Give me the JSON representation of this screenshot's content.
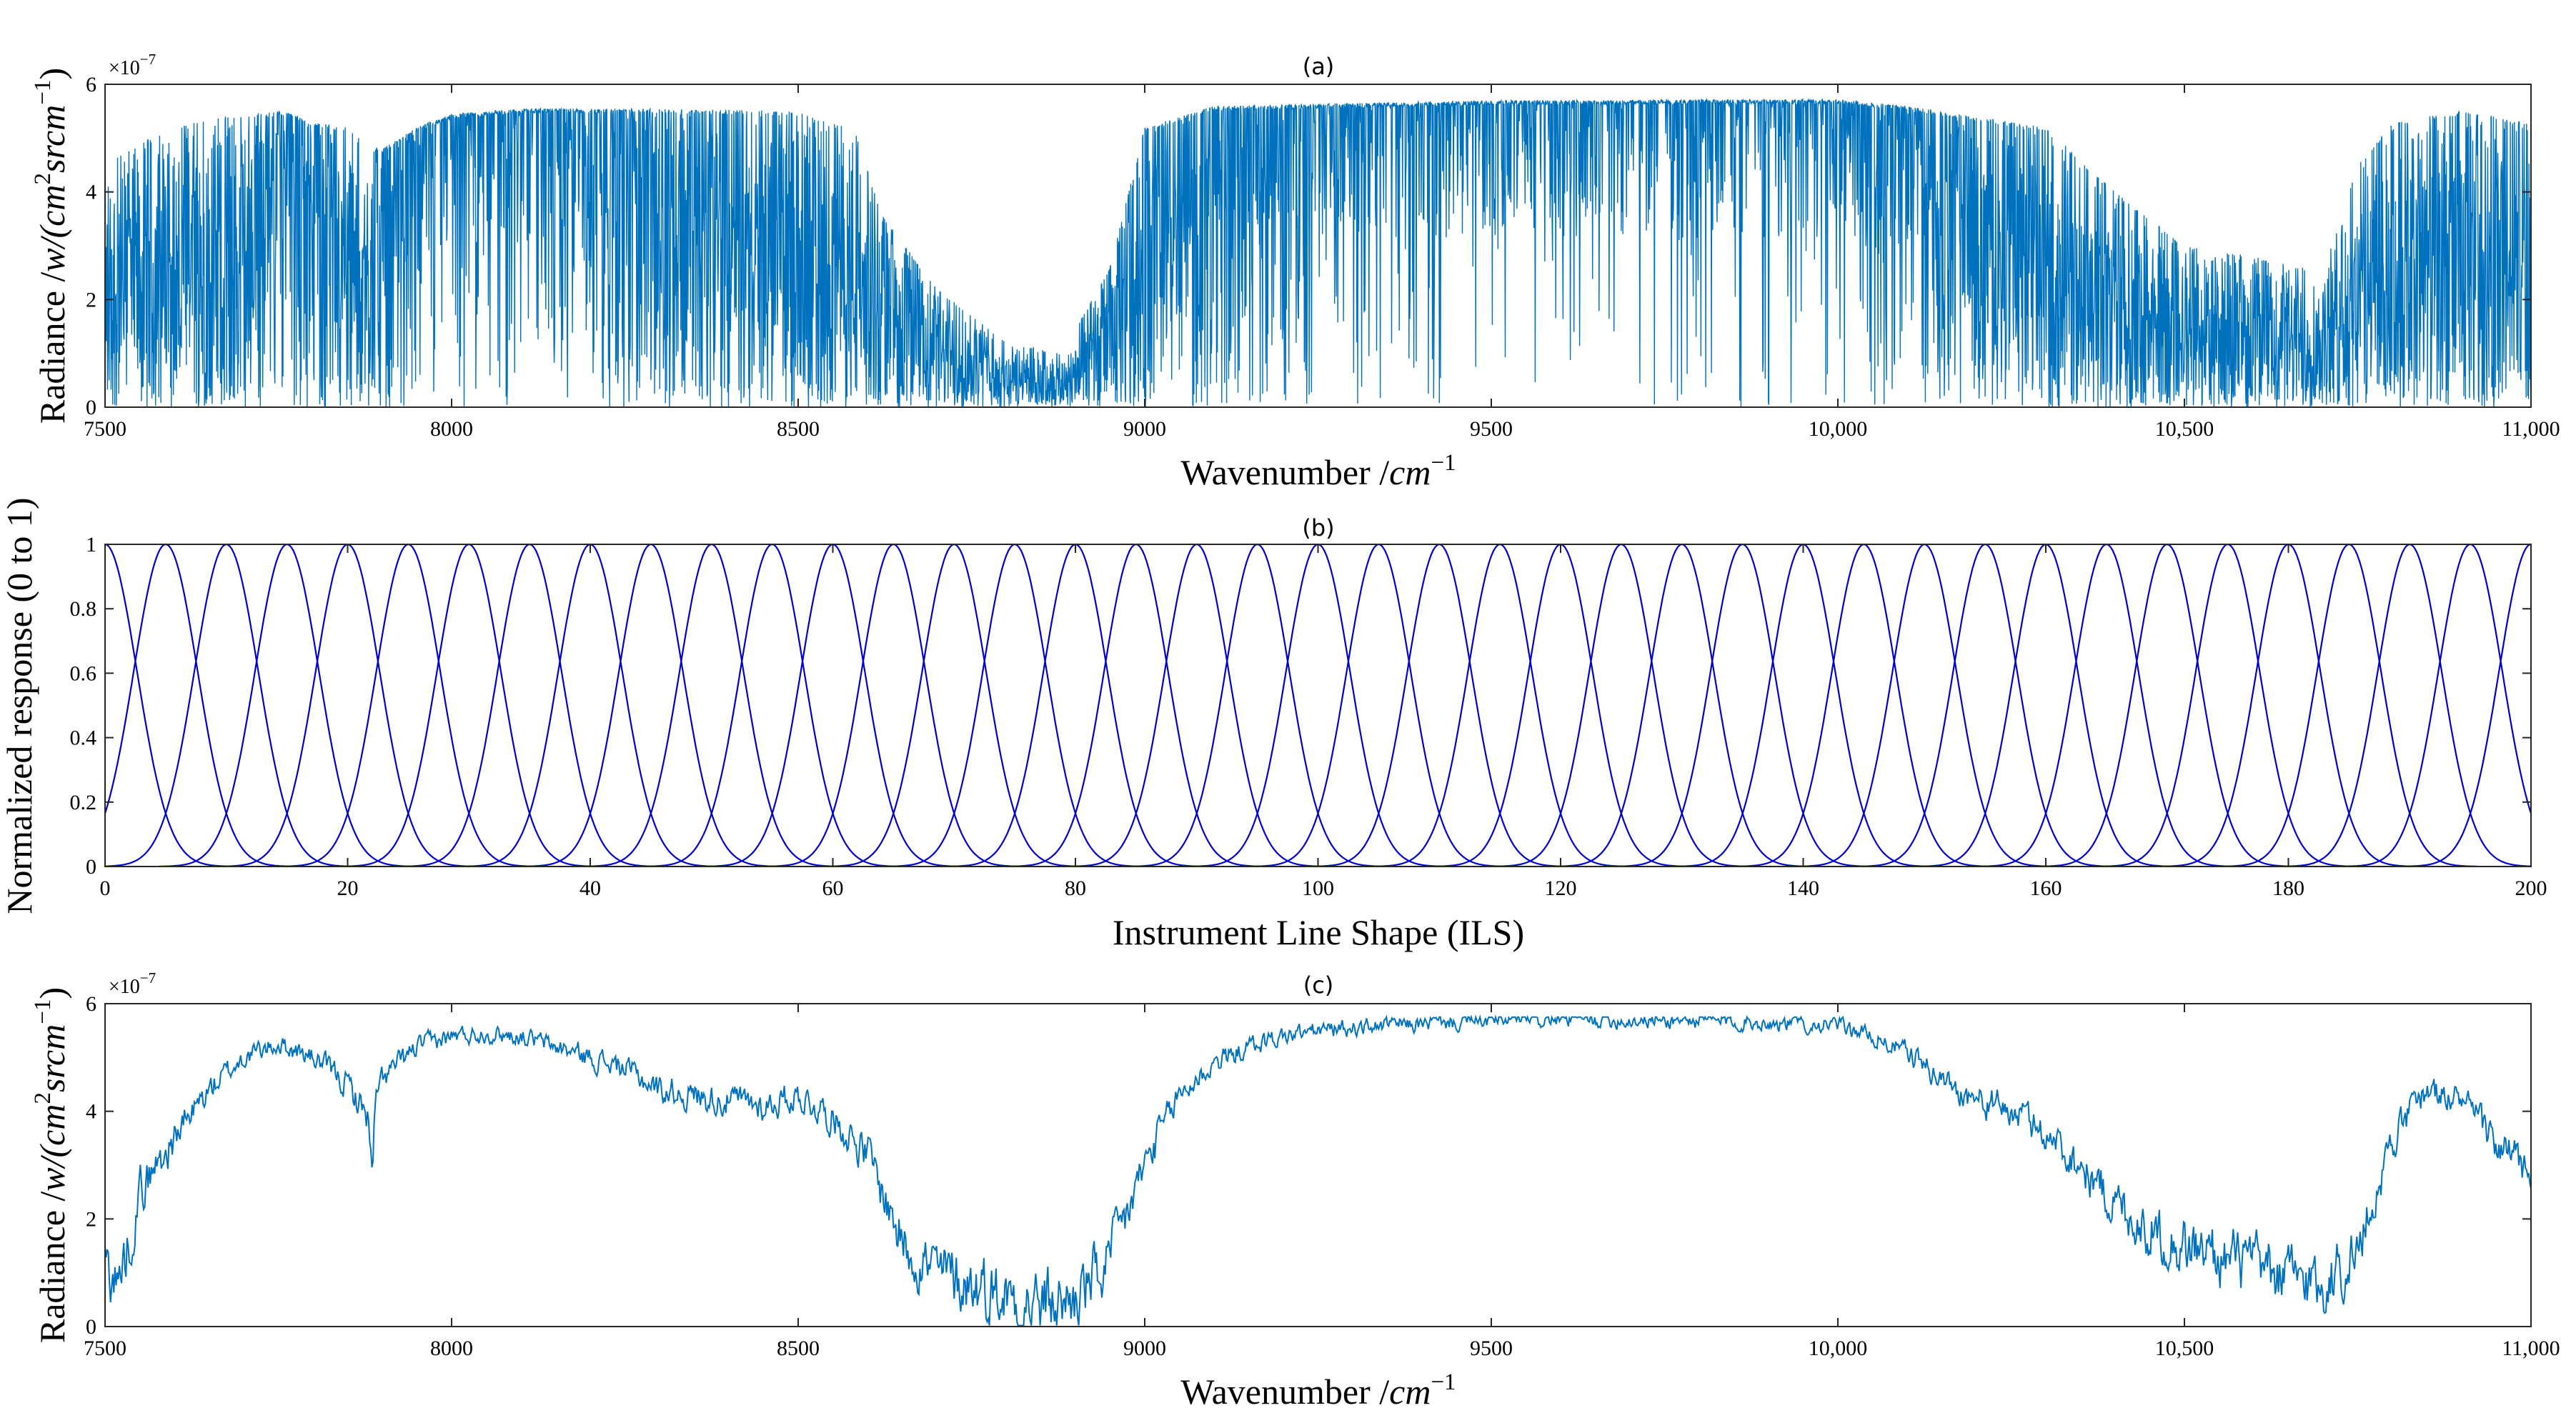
{
  "chart_data": [
    {
      "type": "line",
      "title": "(a)",
      "xlabel_text": "Wavenumber /",
      "xlabel_unit": "cm",
      "xlabel_sup": "−1",
      "ylabel_text": "Radiance /",
      "ylabel_unit": "w/(cm",
      "ylabel_sup1": "2",
      "ylabel_unit2": "srcm",
      "ylabel_sup2": "−1",
      "ylabel_close": ")",
      "exponent_base": "×10",
      "exponent_power": "−7",
      "xlim": [
        7500,
        11000
      ],
      "ylim": [
        0,
        6
      ],
      "xticks": [
        7500,
        8000,
        8500,
        9000,
        9500,
        10000,
        10500,
        11000
      ],
      "xtick_labels": [
        "7500",
        "8000",
        "8500",
        "9000",
        "9500",
        "10,000",
        "10,500",
        "11,000"
      ],
      "yticks": [
        0,
        2,
        4,
        6
      ],
      "ytick_labels": [
        "0",
        "2",
        "4",
        "6"
      ],
      "color": "#0072BD",
      "envelope": {
        "x": [
          7500,
          7560,
          7620,
          7700,
          7760,
          7800,
          7850,
          7880,
          7900,
          7950,
          8000,
          8100,
          8300,
          8500,
          8580,
          8620,
          8700,
          8800,
          8880,
          8950,
          9000,
          9100,
          9300,
          9500,
          9800,
          10000,
          10100,
          10200,
          10300,
          10400,
          10500,
          10600,
          10700,
          10750,
          10800,
          10900,
          11000
        ],
        "upper": [
          4.5,
          5.0,
          5.3,
          5.45,
          5.5,
          5.3,
          5.2,
          4.9,
          4.8,
          5.2,
          5.45,
          5.55,
          5.55,
          5.5,
          5.2,
          3.6,
          2.2,
          1.2,
          1.0,
          2.6,
          5.2,
          5.6,
          5.65,
          5.7,
          5.72,
          5.72,
          5.6,
          5.4,
          5.2,
          4.0,
          3.0,
          2.8,
          2.5,
          4.5,
          5.3,
          5.5,
          5.3
        ],
        "density": [
          0.95,
          0.95,
          0.9,
          0.9,
          0.5,
          0.6,
          0.9,
          0.95,
          0.6,
          0.4,
          0.35,
          0.15,
          0.6,
          0.85,
          0.95,
          0.9,
          0.9,
          0.95,
          0.95,
          0.85,
          0.7,
          0.45,
          0.2,
          0.08,
          0.08,
          0.12,
          0.35,
          0.7,
          0.85,
          0.9,
          0.9,
          0.95,
          0.95,
          0.9,
          0.85,
          0.85,
          0.85
        ]
      }
    },
    {
      "type": "line",
      "title": "(b)",
      "xlabel": "Instrument Line Shape (ILS)",
      "ylabel": "Normalized response (0 to 1)",
      "xlim": [
        0,
        200
      ],
      "ylim": [
        0,
        1
      ],
      "xticks": [
        0,
        20,
        40,
        60,
        80,
        100,
        120,
        140,
        160,
        180,
        200
      ],
      "xtick_labels": [
        "0",
        "20",
        "40",
        "60",
        "80",
        "100",
        "120",
        "140",
        "160",
        "180",
        "200"
      ],
      "yticks": [
        0,
        0.2,
        0.4,
        0.6,
        0.8,
        1
      ],
      "ytick_labels": [
        "0",
        "0.2",
        "0.4",
        "0.6",
        "0.8",
        "1"
      ],
      "color": "#0000CC",
      "peak_centers": [
        0,
        5,
        10,
        15,
        20,
        25,
        30,
        35,
        40,
        45,
        50,
        55,
        60,
        65,
        70,
        75,
        80,
        85,
        90,
        95,
        100,
        105,
        110,
        115,
        120,
        125,
        130,
        135,
        140,
        145,
        150,
        155,
        160,
        165,
        170,
        175,
        180,
        185,
        190,
        195,
        200
      ],
      "peak_fwhm": 6.2,
      "peak_height": 1
    },
    {
      "type": "line",
      "title": "(c)",
      "xlabel_text": "Wavenumber /",
      "xlabel_unit": "cm",
      "xlabel_sup": "−1",
      "ylabel_text": "Radiance /",
      "ylabel_unit": "w/(cm",
      "ylabel_sup1": "2",
      "ylabel_unit2": "srcm",
      "ylabel_sup2": "−1",
      "ylabel_close": ")",
      "exponent_base": "×10",
      "exponent_power": "−7",
      "xlim": [
        7500,
        11000
      ],
      "ylim": [
        0,
        6
      ],
      "xticks": [
        7500,
        8000,
        8500,
        9000,
        9500,
        10000,
        10500,
        11000
      ],
      "xtick_labels": [
        "7500",
        "8000",
        "8500",
        "9000",
        "9500",
        "10,000",
        "10,500",
        "11,000"
      ],
      "yticks": [
        0,
        2,
        4,
        6
      ],
      "ytick_labels": [
        "0",
        "2",
        "4",
        "6"
      ],
      "color": "#0072BD",
      "x": [
        7500,
        7520,
        7550,
        7600,
        7650,
        7700,
        7750,
        7800,
        7850,
        7880,
        7885,
        7890,
        7900,
        7950,
        8000,
        8050,
        8100,
        8150,
        8200,
        8250,
        8300,
        8350,
        8400,
        8450,
        8500,
        8550,
        8600,
        8650,
        8700,
        8750,
        8800,
        8850,
        8900,
        8950,
        9000,
        9050,
        9100,
        9150,
        9200,
        9250,
        9300,
        9350,
        9400,
        9500,
        9600,
        9700,
        9800,
        9900,
        10000,
        10050,
        10100,
        10150,
        10200,
        10250,
        10300,
        10350,
        10400,
        10450,
        10500,
        10550,
        10600,
        10650,
        10700,
        10750,
        10800,
        10850,
        10900,
        10950,
        11000
      ],
      "y": [
        1.2,
        0.8,
        2.5,
        3.5,
        4.4,
        5.0,
        5.25,
        5.0,
        4.5,
        3.9,
        2.7,
        4.1,
        4.6,
        5.2,
        5.4,
        5.45,
        5.4,
        5.2,
        5.0,
        4.8,
        4.4,
        4.3,
        4.2,
        4.1,
        4.3,
        3.9,
        3.2,
        1.6,
        1.0,
        0.8,
        0.6,
        0.4,
        0.5,
        1.2,
        3.0,
        4.3,
        4.9,
        5.2,
        5.4,
        5.5,
        5.55,
        5.6,
        5.62,
        5.68,
        5.7,
        5.7,
        5.68,
        5.65,
        5.6,
        5.4,
        5.1,
        4.6,
        4.2,
        4.0,
        3.6,
        3.0,
        2.3,
        1.8,
        1.5,
        1.3,
        1.1,
        0.9,
        0.8,
        1.4,
        3.5,
        4.4,
        4.2,
        3.4,
        2.8
      ]
    }
  ]
}
